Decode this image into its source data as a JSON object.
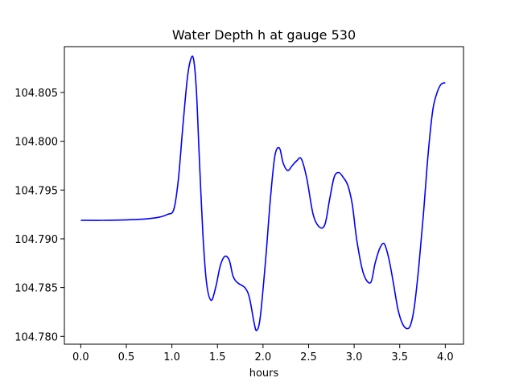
{
  "chart_data": {
    "type": "line",
    "title": "Water Depth h at gauge 530",
    "xlabel": "hours",
    "ylabel": "",
    "xlim": [
      -0.18,
      4.2
    ],
    "ylim": [
      104.7792,
      104.8097
    ],
    "xticks": [
      0.0,
      0.5,
      1.0,
      1.5,
      2.0,
      2.5,
      3.0,
      3.5,
      4.0
    ],
    "xtick_labels": [
      "0.0",
      "0.5",
      "1.0",
      "1.5",
      "2.0",
      "2.5",
      "3.0",
      "3.5",
      "4.0"
    ],
    "yticks": [
      104.78,
      104.785,
      104.79,
      104.795,
      104.8,
      104.805
    ],
    "ytick_labels": [
      "104.780",
      "104.785",
      "104.790",
      "104.795",
      "104.800",
      "104.805"
    ],
    "grid": false,
    "series": [
      {
        "color": "#0000ff",
        "x": [
          0.0,
          0.3,
          0.65,
          0.85,
          0.95,
          1.02,
          1.07,
          1.12,
          1.17,
          1.21,
          1.24,
          1.27,
          1.3,
          1.34,
          1.38,
          1.43,
          1.48,
          1.53,
          1.58,
          1.63,
          1.67,
          1.72,
          1.8,
          1.85,
          1.9,
          1.93,
          1.97,
          2.03,
          2.08,
          2.13,
          2.18,
          2.22,
          2.27,
          2.32,
          2.37,
          2.42,
          2.48,
          2.55,
          2.62,
          2.68,
          2.73,
          2.78,
          2.83,
          2.88,
          2.93,
          2.98,
          3.03,
          3.1,
          3.18,
          3.23,
          3.28,
          3.33,
          3.38,
          3.43,
          3.48,
          3.53,
          3.58,
          3.62,
          3.66,
          3.71,
          3.76,
          3.81,
          3.86,
          3.9,
          3.95,
          4.0
        ],
        "y": [
          104.7919,
          104.7919,
          104.792,
          104.7922,
          104.7925,
          104.793,
          104.796,
          104.8015,
          104.8065,
          104.8085,
          104.8083,
          104.805,
          104.7985,
          104.7905,
          104.7855,
          104.7837,
          104.785,
          104.7872,
          104.7882,
          104.7878,
          104.7862,
          104.7855,
          104.785,
          104.784,
          104.7815,
          104.7806,
          104.782,
          104.788,
          104.794,
          104.7985,
          104.7993,
          104.7978,
          104.797,
          104.7975,
          104.798,
          104.7982,
          104.7962,
          104.7925,
          104.7912,
          104.7915,
          104.794,
          104.7963,
          104.7968,
          104.7963,
          104.7955,
          104.7935,
          104.7898,
          104.7865,
          104.7855,
          104.7875,
          104.789,
          104.7895,
          104.788,
          104.7855,
          104.7828,
          104.7813,
          104.7808,
          104.7812,
          104.783,
          104.7872,
          104.7925,
          104.7985,
          104.803,
          104.8047,
          104.8058,
          104.806
        ]
      }
    ]
  }
}
